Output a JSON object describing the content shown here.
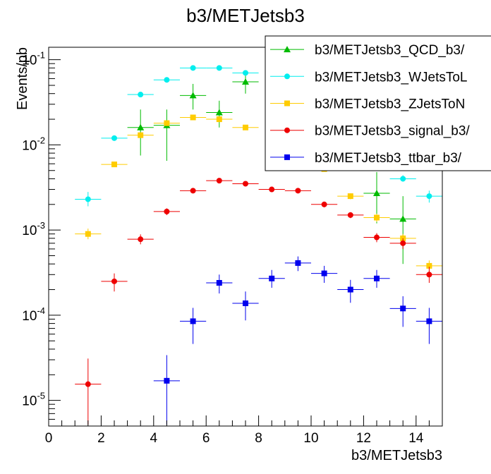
{
  "chart_data": {
    "type": "scatter",
    "title": "b3/METJetsb3",
    "xlabel": "b3/METJetsb3",
    "ylabel": "Events/pb",
    "xlim": [
      0,
      15
    ],
    "ylim": [
      5e-06,
      0.14
    ],
    "yscale": "log",
    "grid": false,
    "legend_position": "top-right",
    "x_tick_labels": [
      "0",
      "2",
      "4",
      "6",
      "8",
      "10",
      "12",
      "14"
    ],
    "y_tick_labels": [
      {
        "base": "10",
        "exp": "-5",
        "value": 1e-05
      },
      {
        "base": "10",
        "exp": "-4",
        "value": 0.0001
      },
      {
        "base": "10",
        "exp": "-3",
        "value": 0.001
      },
      {
        "base": "10",
        "exp": "-2",
        "value": 0.01
      },
      {
        "base": "10",
        "exp": "-1",
        "value": 0.1
      }
    ],
    "series": [
      {
        "name": "b3/METJetsb3_QCD_b3/",
        "color": "#00bb00",
        "marker": "triangle",
        "points": [
          {
            "x": 3.5,
            "y": 0.016,
            "lo": 0.0075,
            "hi": 0.026
          },
          {
            "x": 4.5,
            "y": 0.017,
            "lo": 0.0065,
            "hi": 0.026
          },
          {
            "x": 5.5,
            "y": 0.038,
            "lo": 0.026,
            "hi": 0.052
          },
          {
            "x": 6.5,
            "y": 0.024,
            "lo": 0.016,
            "hi": 0.033
          },
          {
            "x": 7.5,
            "y": 0.055,
            "lo": 0.04,
            "hi": 0.07
          },
          {
            "x": 12.5,
            "y": 0.0027,
            "lo": 0.0012,
            "hi": 0.0048
          },
          {
            "x": 13.5,
            "y": 0.00135,
            "lo": 0.0004,
            "hi": 0.0025
          }
        ]
      },
      {
        "name": "b3/METJetsb3_WJetsToL",
        "color": "#00eeee",
        "marker": "circle",
        "points": [
          {
            "x": 1.5,
            "y": 0.0023,
            "lo": 0.0019,
            "hi": 0.0028
          },
          {
            "x": 2.5,
            "y": 0.012,
            "lo": 0.0112,
            "hi": 0.0128
          },
          {
            "x": 3.5,
            "y": 0.039,
            "lo": 0.037,
            "hi": 0.041
          },
          {
            "x": 4.5,
            "y": 0.058,
            "lo": 0.055,
            "hi": 0.061
          },
          {
            "x": 5.5,
            "y": 0.08,
            "lo": 0.077,
            "hi": 0.083
          },
          {
            "x": 6.5,
            "y": 0.08,
            "lo": 0.077,
            "hi": 0.083
          },
          {
            "x": 7.5,
            "y": 0.07,
            "lo": 0.067,
            "hi": 0.073
          },
          {
            "x": 13.5,
            "y": 0.004,
            "lo": 0.0037,
            "hi": 0.0044
          },
          {
            "x": 14.5,
            "y": 0.0025,
            "lo": 0.0021,
            "hi": 0.0029
          }
        ]
      },
      {
        "name": "b3/METJetsb3_ZJetsToN",
        "color": "#ffcc00",
        "marker": "square",
        "points": [
          {
            "x": 1.5,
            "y": 0.0009,
            "lo": 0.00078,
            "hi": 0.00104
          },
          {
            "x": 2.5,
            "y": 0.0059,
            "lo": 0.0056,
            "hi": 0.0062
          },
          {
            "x": 3.5,
            "y": 0.013,
            "lo": 0.0124,
            "hi": 0.0136
          },
          {
            "x": 4.5,
            "y": 0.018,
            "lo": 0.0172,
            "hi": 0.0188
          },
          {
            "x": 5.5,
            "y": 0.021,
            "lo": 0.02,
            "hi": 0.022
          },
          {
            "x": 6.5,
            "y": 0.02,
            "lo": 0.019,
            "hi": 0.021
          },
          {
            "x": 7.5,
            "y": 0.016,
            "lo": 0.0152,
            "hi": 0.0168
          },
          {
            "x": 10.5,
            "y": 0.0052,
            "lo": 0.0049,
            "hi": 0.0055
          },
          {
            "x": 11.5,
            "y": 0.0025,
            "lo": 0.0023,
            "hi": 0.0027
          },
          {
            "x": 12.5,
            "y": 0.0014,
            "lo": 0.00125,
            "hi": 0.00155
          },
          {
            "x": 13.5,
            "y": 0.0008,
            "lo": 0.0007,
            "hi": 0.0009
          },
          {
            "x": 14.5,
            "y": 0.00038,
            "lo": 0.00032,
            "hi": 0.00044
          }
        ]
      },
      {
        "name": "b3/METJetsb3_signal_b3/",
        "color": "#ee0000",
        "marker": "circle",
        "points": [
          {
            "x": 1.5,
            "y": 1.55e-05,
            "lo": 5.2e-06,
            "hi": 3.1e-05
          },
          {
            "x": 2.5,
            "y": 0.00025,
            "lo": 0.00019,
            "hi": 0.00031
          },
          {
            "x": 3.5,
            "y": 0.00078,
            "lo": 0.00068,
            "hi": 0.00089
          },
          {
            "x": 4.5,
            "y": 0.00165,
            "lo": 0.0015,
            "hi": 0.0018
          },
          {
            "x": 5.5,
            "y": 0.0029,
            "lo": 0.0027,
            "hi": 0.0031
          },
          {
            "x": 6.5,
            "y": 0.0038,
            "lo": 0.0036,
            "hi": 0.004
          },
          {
            "x": 7.5,
            "y": 0.0035,
            "lo": 0.0033,
            "hi": 0.0037
          },
          {
            "x": 8.5,
            "y": 0.003,
            "lo": 0.0028,
            "hi": 0.0032
          },
          {
            "x": 9.5,
            "y": 0.0029,
            "lo": 0.0027,
            "hi": 0.0031
          },
          {
            "x": 10.5,
            "y": 0.002,
            "lo": 0.00185,
            "hi": 0.00215
          },
          {
            "x": 11.5,
            "y": 0.0015,
            "lo": 0.00138,
            "hi": 0.00162
          },
          {
            "x": 12.5,
            "y": 0.00082,
            "lo": 0.00072,
            "hi": 0.00092
          },
          {
            "x": 13.5,
            "y": 0.0007,
            "lo": 0.0006,
            "hi": 0.0008
          },
          {
            "x": 14.5,
            "y": 0.0003,
            "lo": 0.00024,
            "hi": 0.00037
          }
        ]
      },
      {
        "name": "b3/METJetsb3_ttbar_b3/",
        "color": "#0000ee",
        "marker": "square",
        "points": [
          {
            "x": 4.5,
            "y": 1.7e-05,
            "lo": 5.2e-06,
            "hi": 3.4e-05
          },
          {
            "x": 5.5,
            "y": 8.5e-05,
            "lo": 4.6e-05,
            "hi": 0.000122
          },
          {
            "x": 6.5,
            "y": 0.00024,
            "lo": 0.00018,
            "hi": 0.0003
          },
          {
            "x": 7.5,
            "y": 0.000138,
            "lo": 8.7e-05,
            "hi": 0.00019
          },
          {
            "x": 8.5,
            "y": 0.00027,
            "lo": 0.00021,
            "hi": 0.00034
          },
          {
            "x": 9.5,
            "y": 0.00041,
            "lo": 0.00033,
            "hi": 0.00049
          },
          {
            "x": 10.5,
            "y": 0.00031,
            "lo": 0.00024,
            "hi": 0.00038
          },
          {
            "x": 11.5,
            "y": 0.0002,
            "lo": 0.00014,
            "hi": 0.00026
          },
          {
            "x": 12.5,
            "y": 0.00027,
            "lo": 0.00021,
            "hi": 0.00034
          },
          {
            "x": 13.5,
            "y": 0.00012,
            "lo": 7.3e-05,
            "hi": 0.000167
          },
          {
            "x": 14.5,
            "y": 8.5e-05,
            "lo": 4.6e-05,
            "hi": 0.000122
          }
        ]
      }
    ]
  }
}
